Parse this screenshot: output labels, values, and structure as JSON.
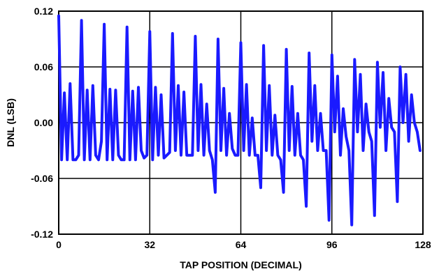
{
  "chart_data": {
    "type": "line",
    "title": "",
    "xlabel": "TAP POSITION (DECIMAL)",
    "ylabel": "DNL (LSB)",
    "xlim": [
      0,
      128
    ],
    "ylim": [
      -0.12,
      0.12
    ],
    "x_ticks": [
      0,
      32,
      64,
      96,
      128
    ],
    "y_ticks": [
      -0.12,
      -0.06,
      0.0,
      0.06,
      0.12
    ],
    "x_tick_labels": [
      "0",
      "32",
      "64",
      "96",
      "128"
    ],
    "y_tick_labels": [
      "-0.12",
      "-0.06",
      "0.00",
      "0.06",
      "0.12"
    ],
    "grid": true,
    "series": [
      {
        "color": "#1a1aff",
        "x": [
          0,
          1,
          2,
          3,
          4,
          5,
          6,
          7,
          8,
          9,
          10,
          11,
          12,
          13,
          14,
          15,
          16,
          17,
          18,
          19,
          20,
          21,
          22,
          23,
          24,
          25,
          26,
          27,
          28,
          29,
          30,
          31,
          32,
          33,
          34,
          35,
          36,
          37,
          38,
          39,
          40,
          41,
          42,
          43,
          44,
          45,
          46,
          47,
          48,
          49,
          50,
          51,
          52,
          53,
          54,
          55,
          56,
          57,
          58,
          59,
          60,
          61,
          62,
          63,
          64,
          65,
          66,
          67,
          68,
          69,
          70,
          71,
          72,
          73,
          74,
          75,
          76,
          77,
          78,
          79,
          80,
          81,
          82,
          83,
          84,
          85,
          86,
          87,
          88,
          89,
          90,
          91,
          92,
          93,
          94,
          95,
          96,
          97,
          98,
          99,
          100,
          101,
          102,
          103,
          104,
          105,
          106,
          107,
          108,
          109,
          110,
          111,
          112,
          113,
          114,
          115,
          116,
          117,
          118,
          119,
          120,
          121,
          122,
          123,
          124,
          125,
          126,
          127
        ],
        "values": [
          0.115,
          -0.04,
          0.032,
          -0.04,
          0.042,
          -0.04,
          -0.04,
          -0.035,
          0.11,
          -0.04,
          0.035,
          -0.04,
          0.04,
          -0.035,
          -0.04,
          -0.02,
          0.106,
          -0.04,
          0.036,
          -0.04,
          0.035,
          -0.035,
          -0.04,
          -0.04,
          0.103,
          -0.04,
          0.034,
          -0.04,
          0.038,
          -0.03,
          -0.038,
          -0.035,
          0.098,
          -0.04,
          0.038,
          -0.035,
          0.03,
          -0.038,
          -0.035,
          -0.032,
          0.096,
          -0.03,
          0.04,
          -0.035,
          0.033,
          -0.035,
          -0.035,
          -0.035,
          0.093,
          -0.03,
          0.041,
          -0.035,
          0.02,
          -0.03,
          -0.04,
          -0.075,
          0.09,
          -0.03,
          0.037,
          -0.035,
          0.01,
          -0.028,
          -0.035,
          -0.035,
          0.086,
          -0.03,
          0.041,
          -0.035,
          0.005,
          -0.035,
          -0.035,
          -0.07,
          0.083,
          -0.03,
          0.04,
          -0.035,
          0.008,
          -0.035,
          -0.04,
          -0.075,
          0.079,
          -0.03,
          0.039,
          -0.035,
          0.01,
          -0.035,
          -0.04,
          -0.09,
          0.075,
          -0.02,
          0.04,
          -0.03,
          0.01,
          -0.03,
          -0.03,
          -0.105,
          0.073,
          -0.01,
          0.05,
          -0.035,
          0.015,
          -0.015,
          -0.03,
          -0.11,
          0.068,
          -0.01,
          0.052,
          -0.03,
          0.02,
          -0.01,
          -0.02,
          -0.1,
          0.065,
          -0.005,
          0.054,
          -0.03,
          0.026,
          -0.005,
          -0.01,
          -0.085,
          0.06,
          0.0,
          0.052,
          -0.02,
          0.03,
          0.0,
          -0.01,
          -0.03
        ]
      }
    ]
  }
}
